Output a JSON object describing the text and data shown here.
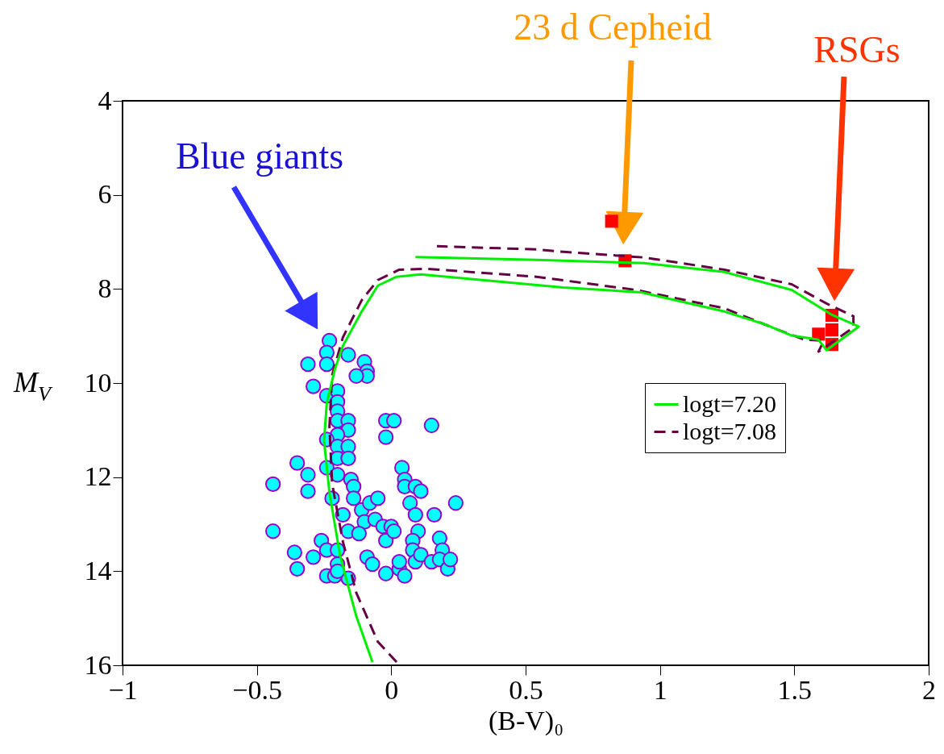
{
  "chart_data": {
    "type": "scatter",
    "xlabel": "(B-V)₀",
    "ylabel": "M$_{V}$",
    "xlim": [
      -1,
      2
    ],
    "xticks": [
      -1,
      -0.5,
      0,
      0.5,
      1,
      1.5,
      2
    ],
    "ylim": [
      16,
      4
    ],
    "yticks": [
      4,
      6,
      8,
      10,
      12,
      14,
      16
    ],
    "grid": false,
    "legend": "right",
    "series": [
      {
        "type": "line",
        "name": "logt=7.20",
        "color": "#00ee00",
        "line_style": "solid",
        "x": [
          -0.07,
          -0.13,
          -0.19,
          -0.23,
          -0.25,
          -0.24,
          -0.21,
          -0.18,
          -0.11,
          -0.05,
          0.02,
          0.11,
          0.64,
          0.93,
          1.24,
          1.39,
          1.49,
          1.59,
          1.62,
          1.74,
          1.64,
          1.49,
          1.24,
          0.94,
          0.64,
          0.54,
          0.09
        ],
        "values": [
          15.93,
          14.96,
          13.68,
          12.33,
          11.23,
          10.43,
          9.71,
          9.21,
          8.48,
          7.93,
          7.74,
          7.69,
          7.97,
          8.07,
          8.48,
          8.75,
          8.99,
          9.08,
          9.3,
          8.8,
          8.55,
          8.02,
          7.64,
          7.45,
          7.4,
          7.38,
          7.32
        ]
      },
      {
        "type": "line",
        "name": "logt=7.08",
        "color": "#660044",
        "line_style": "dashed",
        "x": [
          0.02,
          -0.05,
          -0.13,
          -0.18,
          -0.22,
          -0.23,
          -0.22,
          -0.18,
          -0.11,
          -0.05,
          0.03,
          0.13,
          0.54,
          0.91,
          1.24,
          1.44,
          1.54,
          1.61,
          1.59,
          1.72,
          1.72,
          1.62,
          1.49,
          1.24,
          0.94,
          0.64,
          0.54,
          0.17
        ],
        "values": [
          15.93,
          15.5,
          14.46,
          13.37,
          12.14,
          10.92,
          9.83,
          9.03,
          8.24,
          7.81,
          7.59,
          7.57,
          7.74,
          8.02,
          8.41,
          8.87,
          9.08,
          9.1,
          9.33,
          8.82,
          8.58,
          8.31,
          7.9,
          7.59,
          7.33,
          7.21,
          7.16,
          7.09
        ]
      },
      {
        "type": "scatter",
        "color": "#00ffff",
        "marker": "circle",
        "x": [
          -0.23,
          -0.24,
          -0.16,
          -0.31,
          -0.24,
          -0.1,
          -0.09,
          -0.09,
          -0.13,
          -0.29,
          -0.24,
          -0.2,
          -0.2,
          -0.2,
          -0.2,
          -0.16,
          -0.16,
          -0.2,
          -0.24,
          -0.2,
          -0.16,
          -0.2,
          -0.16,
          -0.24,
          -0.2,
          -0.15,
          -0.35,
          -0.31,
          -0.31,
          -0.14,
          -0.02,
          0.01,
          -0.02,
          0.15,
          -0.22,
          -0.14,
          -0.11,
          -0.08,
          -0.05,
          0.04,
          0.05,
          0.05,
          0.09,
          0.11,
          0.07,
          0.09,
          0.24,
          -0.18,
          -0.16,
          -0.1,
          -0.06,
          -0.03,
          0.0,
          -0.02,
          0.01,
          0.1,
          0.08,
          0.08,
          0.16,
          0.18,
          0.19,
          -0.26,
          -0.24,
          -0.2,
          -0.12,
          -0.09,
          -0.29,
          -0.44,
          -0.44,
          -0.36,
          -0.35,
          -0.2,
          -0.16,
          -0.07,
          -0.02,
          0.03,
          0.03,
          0.05,
          0.09,
          0.11,
          0.15,
          0.18,
          0.21,
          0.22,
          -0.24,
          -0.21,
          -0.2
        ],
        "values": [
          9.1,
          9.35,
          9.4,
          9.6,
          9.6,
          9.55,
          9.75,
          9.85,
          9.85,
          10.07,
          10.27,
          10.17,
          10.4,
          10.6,
          10.8,
          10.8,
          11.0,
          11.1,
          11.2,
          11.35,
          11.35,
          11.6,
          11.6,
          11.8,
          11.95,
          12.05,
          11.7,
          11.95,
          12.3,
          12.2,
          10.8,
          10.8,
          11.15,
          10.9,
          12.45,
          12.45,
          12.7,
          12.55,
          12.45,
          11.8,
          12.05,
          12.2,
          12.2,
          12.3,
          12.55,
          12.8,
          12.55,
          12.8,
          13.15,
          12.95,
          12.9,
          13.05,
          13.05,
          13.35,
          13.15,
          13.15,
          13.35,
          13.55,
          12.8,
          13.3,
          13.55,
          13.35,
          13.55,
          13.55,
          13.2,
          13.7,
          13.7,
          12.15,
          13.15,
          13.6,
          13.95,
          13.85,
          14.15,
          13.85,
          14.05,
          13.95,
          13.8,
          14.1,
          13.8,
          13.65,
          13.8,
          13.75,
          13.95,
          13.75,
          14.1,
          14.1,
          14.0
        ]
      },
      {
        "type": "scatter",
        "color": "#ff0000",
        "marker": "square",
        "x": [
          0.82,
          0.87,
          1.64,
          1.64,
          1.59,
          1.64
        ],
        "values": [
          6.56,
          7.4,
          8.56,
          8.87,
          8.96,
          9.18
        ]
      }
    ],
    "annotations": [
      "Blue giants",
      "23 d Cepheid",
      "RSGs"
    ]
  }
}
